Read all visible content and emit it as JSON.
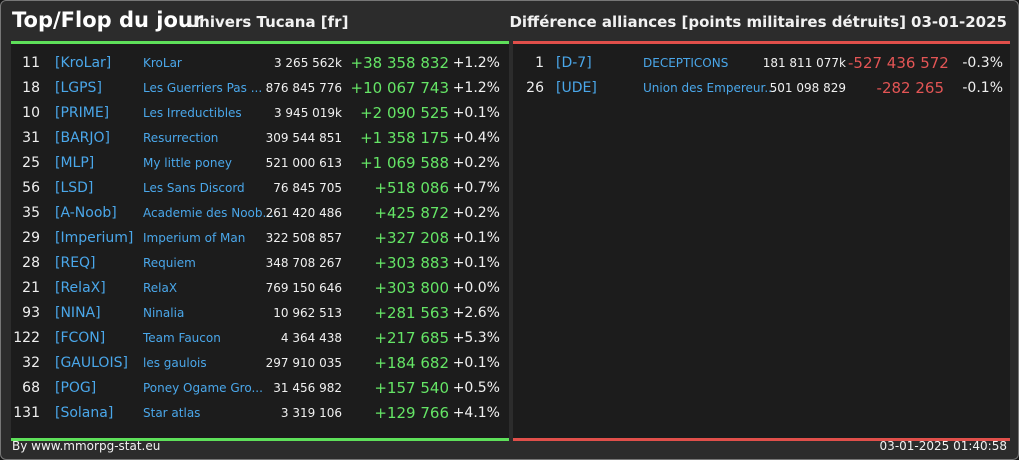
{
  "header": {
    "title": "Top/Flop du jour",
    "universe": "Univers Tucana [fr]",
    "difference_label": "Différence alliances [points militaires détruits]",
    "date": "03-01-2025"
  },
  "colors": {
    "positive": "#65e566",
    "negative": "#e35555",
    "tag": "#4aa7ea",
    "top_rule": "#5ee05a",
    "flop_rule": "#e04f4a"
  },
  "top": [
    {
      "rank": "11",
      "tag": "[KroLar]",
      "name": "KroLar",
      "points": "3 265 562k",
      "diff": "+38 358 832",
      "pct": "+1.2%"
    },
    {
      "rank": "18",
      "tag": "[LGPS]",
      "name": "Les Guerriers Pas ...",
      "points": "876 845 776",
      "diff": "+10 067 743",
      "pct": "+1.2%"
    },
    {
      "rank": "10",
      "tag": "[PRIME]",
      "name": "Les Irreductibles",
      "points": "3 945 019k",
      "diff": "+2 090 525",
      "pct": "+0.1%"
    },
    {
      "rank": "31",
      "tag": "[BARJO]",
      "name": "Resurrection",
      "points": "309 544 851",
      "diff": "+1 358 175",
      "pct": "+0.4%"
    },
    {
      "rank": "25",
      "tag": "[MLP]",
      "name": "My little poney",
      "points": "521 000 613",
      "diff": "+1 069 588",
      "pct": "+0.2%"
    },
    {
      "rank": "56",
      "tag": "[LSD]",
      "name": "Les Sans Discord",
      "points": "76 845 705",
      "diff": "+518 086",
      "pct": "+0.7%"
    },
    {
      "rank": "35",
      "tag": "[A-Noob]",
      "name": "Academie des Noob...",
      "points": "261 420 486",
      "diff": "+425 872",
      "pct": "+0.2%"
    },
    {
      "rank": "29",
      "tag": "[Imperium]",
      "name": "Imperium of Man",
      "points": "322 508 857",
      "diff": "+327 208",
      "pct": "+0.1%"
    },
    {
      "rank": "28",
      "tag": "[REQ]",
      "name": "Requiem",
      "points": "348 708 267",
      "diff": "+303 883",
      "pct": "+0.1%"
    },
    {
      "rank": "21",
      "tag": "[RelaX]",
      "name": "RelaX",
      "points": "769 150 646",
      "diff": "+303 800",
      "pct": "+0.0%"
    },
    {
      "rank": "93",
      "tag": "[NINA]",
      "name": "Ninalia",
      "points": "10 962 513",
      "diff": "+281 563",
      "pct": "+2.6%"
    },
    {
      "rank": "122",
      "tag": "[FCON]",
      "name": "Team Faucon",
      "points": "4 364 438",
      "diff": "+217 685",
      "pct": "+5.3%"
    },
    {
      "rank": "32",
      "tag": "[GAULOIS]",
      "name": "les gaulois",
      "points": "297 910 035",
      "diff": "+184 682",
      "pct": "+0.1%"
    },
    {
      "rank": "68",
      "tag": "[POG]",
      "name": "Poney Ogame Gro...",
      "points": "31 456 982",
      "diff": "+157 540",
      "pct": "+0.5%"
    },
    {
      "rank": "131",
      "tag": "[Solana]",
      "name": "Star atlas",
      "points": "3 319 106",
      "diff": "+129 766",
      "pct": "+4.1%"
    }
  ],
  "flop": [
    {
      "rank": "1",
      "tag": "[D-7]",
      "name": "DECEPTICONS",
      "points": "181 811 077k",
      "diff": "-527 436 572",
      "pct": "-0.3%"
    },
    {
      "rank": "26",
      "tag": "[UDE]",
      "name": "Union des Empereur...",
      "points": "501 098 829",
      "diff": "-282 265",
      "pct": "-0.1%"
    }
  ],
  "footer": {
    "source": "By www.mmorpg-stat.eu",
    "timestamp": "03-01-2025 01:40:58"
  }
}
